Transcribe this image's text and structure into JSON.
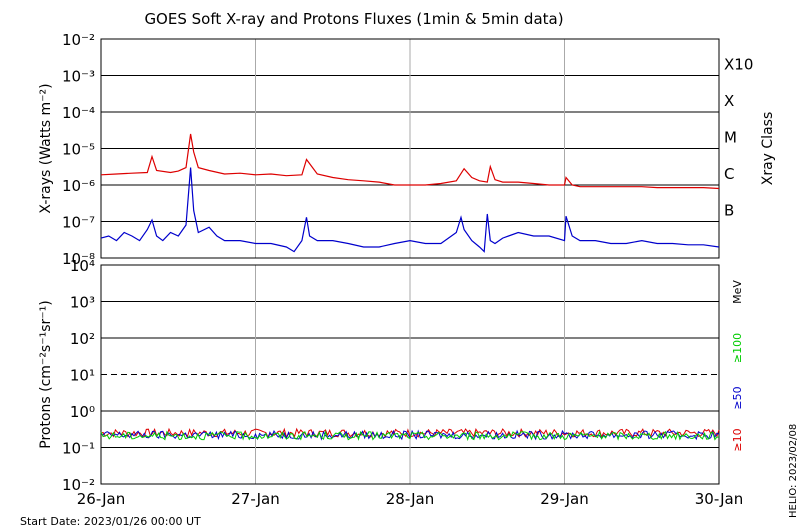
{
  "title": "GOES Soft X-ray and Protons Fluxes   (1min & 5min data)",
  "footer": {
    "start_date": "Start Date: 2023/01/26 00:00 UT",
    "credit": "HELIO: 2023/02/08"
  },
  "chart_data": [
    {
      "type": "line",
      "name": "xray",
      "ylabel": "X-rays (Watts m⁻²)",
      "ylabel_right": "Xray Class",
      "yscale": "log",
      "ylim": [
        1e-08,
        0.01
      ],
      "yticks": [
        {
          "value": 1e-08,
          "label": "10⁻⁸"
        },
        {
          "value": 1e-07,
          "label": "10⁻⁷"
        },
        {
          "value": 1e-06,
          "label": "10⁻⁶"
        },
        {
          "value": 1e-05,
          "label": "10⁻⁵"
        },
        {
          "value": 0.0001,
          "label": "10⁻⁴"
        },
        {
          "value": 0.001,
          "label": "10⁻³"
        },
        {
          "value": 0.01,
          "label": "10⁻²"
        }
      ],
      "class_labels": [
        {
          "value": 1e-07,
          "label": "B"
        },
        {
          "value": 1e-06,
          "label": "C"
        },
        {
          "value": 1e-05,
          "label": "M"
        },
        {
          "value": 0.0001,
          "label": "X"
        },
        {
          "value": 0.001,
          "label": "X10"
        }
      ],
      "xlim": [
        "2023-01-26",
        "2023-01-30"
      ],
      "series": [
        {
          "color": "#dd0000",
          "x": [
            0.0,
            0.1,
            0.2,
            0.3,
            0.33,
            0.36,
            0.45,
            0.5,
            0.55,
            0.58,
            0.6,
            0.63,
            0.7,
            0.8,
            0.9,
            1.0,
            1.1,
            1.2,
            1.3,
            1.33,
            1.4,
            1.5,
            1.6,
            1.7,
            1.8,
            1.9,
            2.0,
            2.1,
            2.2,
            2.3,
            2.35,
            2.4,
            2.45,
            2.5,
            2.52,
            2.55,
            2.6,
            2.7,
            2.8,
            2.9,
            3.0,
            3.01,
            3.05,
            3.1,
            3.2,
            3.3,
            3.4,
            3.5,
            3.6,
            3.7,
            3.8,
            3.9,
            4.0
          ],
          "y": [
            1.9e-06,
            2e-06,
            2.1e-06,
            2.2e-06,
            6e-06,
            2.5e-06,
            2.2e-06,
            2.4e-06,
            3e-06,
            2.5e-05,
            8e-06,
            3e-06,
            2.5e-06,
            2e-06,
            2.1e-06,
            1.9e-06,
            2e-06,
            1.8e-06,
            1.9e-06,
            5e-06,
            2e-06,
            1.6e-06,
            1.4e-06,
            1.3e-06,
            1.2e-06,
            1e-06,
            1e-06,
            1e-06,
            1.1e-06,
            1.3e-06,
            2.8e-06,
            1.6e-06,
            1.3e-06,
            1.2e-06,
            3.2e-06,
            1.4e-06,
            1.2e-06,
            1.2e-06,
            1.1e-06,
            1e-06,
            1e-06,
            1.6e-06,
            1e-06,
            9e-07,
            9e-07,
            9e-07,
            9e-07,
            9e-07,
            8.5e-07,
            8.5e-07,
            8.5e-07,
            8.5e-07,
            8e-07
          ]
        },
        {
          "color": "#0000cc",
          "x": [
            0.0,
            0.05,
            0.1,
            0.15,
            0.2,
            0.25,
            0.3,
            0.33,
            0.36,
            0.4,
            0.45,
            0.5,
            0.55,
            0.58,
            0.6,
            0.63,
            0.7,
            0.75,
            0.8,
            0.9,
            1.0,
            1.1,
            1.2,
            1.25,
            1.3,
            1.33,
            1.35,
            1.4,
            1.5,
            1.6,
            1.7,
            1.8,
            1.9,
            2.0,
            2.1,
            2.2,
            2.3,
            2.33,
            2.35,
            2.4,
            2.45,
            2.48,
            2.5,
            2.52,
            2.55,
            2.6,
            2.7,
            2.8,
            2.9,
            3.0,
            3.01,
            3.05,
            3.1,
            3.2,
            3.3,
            3.4,
            3.5,
            3.6,
            3.7,
            3.8,
            3.9,
            4.0
          ],
          "y": [
            3.5e-08,
            4e-08,
            3e-08,
            5e-08,
            4e-08,
            3e-08,
            6e-08,
            1.1e-07,
            4e-08,
            3e-08,
            5e-08,
            4e-08,
            8e-08,
            3e-06,
            2e-07,
            5e-08,
            7e-08,
            4e-08,
            3e-08,
            3e-08,
            2.5e-08,
            2.5e-08,
            2e-08,
            1.5e-08,
            3e-08,
            1.3e-07,
            4e-08,
            3e-08,
            3e-08,
            2.5e-08,
            2e-08,
            2e-08,
            2.5e-08,
            3e-08,
            2.5e-08,
            2.5e-08,
            5e-08,
            1.3e-07,
            6e-08,
            3e-08,
            2e-08,
            1.5e-08,
            1.6e-07,
            3e-08,
            2.5e-08,
            3.5e-08,
            5e-08,
            4e-08,
            4e-08,
            3e-08,
            1.4e-07,
            4e-08,
            3e-08,
            3e-08,
            2.5e-08,
            2.5e-08,
            3e-08,
            2.5e-08,
            2.5e-08,
            2.3e-08,
            2.3e-08,
            2e-08
          ]
        }
      ]
    },
    {
      "type": "line",
      "name": "protons",
      "ylabel": "Protons (cm⁻²s⁻¹sr⁻¹)",
      "yscale": "log",
      "ylim": [
        0.01,
        10000.0
      ],
      "yticks": [
        {
          "value": 0.01,
          "label": "10⁻²"
        },
        {
          "value": 0.1,
          "label": "10⁻¹"
        },
        {
          "value": 1.0,
          "label": "10⁰"
        },
        {
          "value": 10.0,
          "label": "10¹"
        },
        {
          "value": 100.0,
          "label": "10²"
        },
        {
          "value": 1000.0,
          "label": "10³"
        },
        {
          "value": 10000.0,
          "label": "10⁴"
        }
      ],
      "threshold": 10,
      "energy_unit": "MeV",
      "xlim": [
        "2023-01-26",
        "2023-01-30"
      ],
      "xticks": [
        "26-Jan",
        "27-Jan",
        "28-Jan",
        "29-Jan",
        "30-Jan"
      ],
      "series": [
        {
          "name": "≥10",
          "color": "#dd0000",
          "level": 0.25
        },
        {
          "name": "≥50",
          "color": "#0000cc",
          "level": 0.22
        },
        {
          "name": "≥100",
          "color": "#00cc00",
          "level": 0.21
        }
      ]
    }
  ]
}
